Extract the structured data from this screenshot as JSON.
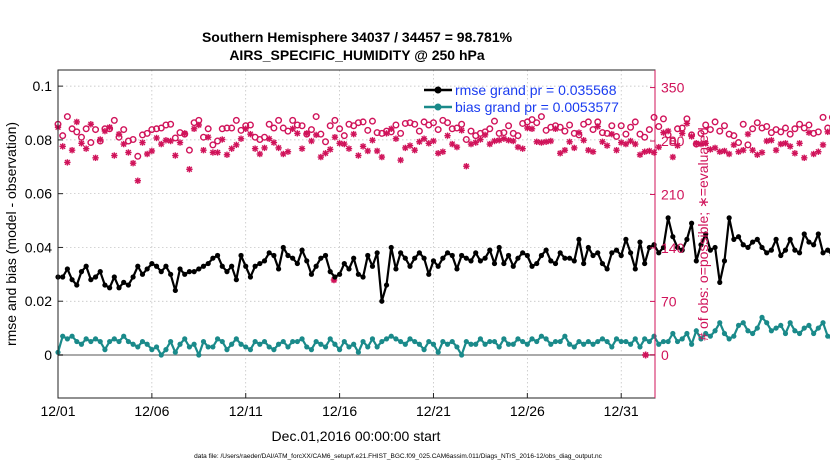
{
  "chart_data": {
    "type": "line",
    "title": "Southern Hemisphere 34037 / 34457 = 98.781%",
    "subtitle": "AIRS_SPECIFIC_HUMIDITY @ 250 hPa",
    "xlabel": "Dec.01,2016 00:00:00 start",
    "ylabel_left": "rmse and bias (model - observation)",
    "ylabel_right": "# of obs: o=possible; ∗=evaluated",
    "footnote": "data file: /Users/raeder/DAI/ATM_forcXX/CAM6_setup/f.e21.FHIST_BGC.f09_025.CAM6assim.011/Diags_NTrS_2016-12/obs_diag_output.nc",
    "xlim": [
      0,
      31.8
    ],
    "ylim_left": [
      -0.016,
      0.106
    ],
    "ylim_right": [
      -56.5,
      373
    ],
    "x_ticks": [
      0,
      5,
      10,
      15,
      20,
      25,
      30
    ],
    "x_tick_labels": [
      "12/01",
      "12/06",
      "12/11",
      "12/16",
      "12/21",
      "12/26",
      "12/31"
    ],
    "y_left_ticks": [
      0,
      0.02,
      0.04,
      0.06,
      0.08,
      0.1
    ],
    "y_left_tick_labels": [
      "0",
      "0.02",
      "0.04",
      "0.06",
      "0.08",
      "0.1"
    ],
    "y_right_ticks": [
      0,
      70,
      140,
      210,
      280,
      350
    ],
    "y_right_tick_labels": [
      "0",
      "70",
      "140",
      "210",
      "280",
      "350"
    ],
    "legend_location": "top-right",
    "colors": {
      "rmse": "#000000",
      "bias": "#1a8a8a",
      "obs": "#d0135a",
      "axis_right": "#d0135a",
      "legend_text": "#1a3cf0"
    },
    "series": [
      {
        "name": "rmse grand pr = 0.035568",
        "axis": "left",
        "values": [
          0.029,
          0.029,
          0.032,
          0.028,
          0.026,
          0.031,
          0.033,
          0.028,
          0.029,
          0.031,
          0.026,
          0.025,
          0.029,
          0.025,
          0.027,
          0.026,
          0.029,
          0.033,
          0.03,
          0.032,
          0.034,
          0.033,
          0.031,
          0.033,
          0.03,
          0.024,
          0.032,
          0.03,
          0.031,
          0.031,
          0.032,
          0.033,
          0.034,
          0.036,
          0.037,
          0.033,
          0.031,
          0.033,
          0.028,
          0.037,
          0.033,
          0.029,
          0.033,
          0.034,
          0.035,
          0.038,
          0.037,
          0.032,
          0.04,
          0.037,
          0.036,
          0.034,
          0.039,
          0.035,
          0.03,
          0.033,
          0.036,
          0.037,
          0.031,
          0.029,
          0.03,
          0.034,
          0.032,
          0.036,
          0.03,
          0.029,
          0.037,
          0.033,
          0.038,
          0.02,
          0.026,
          0.04,
          0.032,
          0.038,
          0.036,
          0.033,
          0.036,
          0.038,
          0.036,
          0.03,
          0.035,
          0.033,
          0.036,
          0.038,
          0.037,
          0.032,
          0.037,
          0.036,
          0.035,
          0.038,
          0.035,
          0.036,
          0.039,
          0.034,
          0.04,
          0.034,
          0.037,
          0.033,
          0.036,
          0.038,
          0.037,
          0.033,
          0.034,
          0.037,
          0.039,
          0.035,
          0.034,
          0.038,
          0.036,
          0.036,
          0.035,
          0.043,
          0.034,
          0.04,
          0.037,
          0.038,
          0.034,
          0.032,
          0.038,
          0.039,
          0.037,
          0.043,
          0.038,
          0.032,
          0.042,
          0.034,
          0.04,
          0.041,
          0.038,
          0.04,
          0.051,
          0.044,
          0.04,
          0.039,
          0.043,
          0.049,
          0.035,
          0.041,
          0.045,
          0.039,
          0.04,
          0.027,
          0.035,
          0.051,
          0.043,
          0.044,
          0.041,
          0.04,
          0.042,
          0.043,
          0.04,
          0.038,
          0.039,
          0.043,
          0.037,
          0.039,
          0.043,
          0.039,
          0.038,
          0.045,
          0.042,
          0.041,
          0.045,
          0.038,
          0.039,
          0.037,
          0.041,
          0.04,
          0.038,
          0.042,
          0.043,
          0.042
        ]
      },
      {
        "name": "bias grand pr = 0.0053577",
        "axis": "left",
        "values": [
          0.001,
          0.007,
          0.006,
          0.007,
          0.005,
          0.004,
          0.006,
          0.005,
          0.006,
          0.005,
          0.002,
          0.005,
          0.006,
          0.005,
          0.007,
          0.005,
          0.004,
          0.003,
          0.005,
          0.004,
          0.002,
          0.003,
          0.0,
          0.002,
          0.005,
          0.001,
          0.004,
          0.006,
          0.003,
          0.004,
          0.0,
          0.005,
          0.003,
          0.003,
          0.006,
          0.005,
          0.002,
          0.004,
          0.006,
          0.004,
          0.003,
          0.002,
          0.005,
          0.004,
          0.005,
          0.003,
          0.002,
          0.004,
          0.005,
          0.003,
          0.005,
          0.005,
          0.006,
          0.003,
          0.002,
          0.005,
          0.004,
          0.003,
          0.006,
          0.004,
          0.002,
          0.005,
          0.003,
          0.004,
          0.001,
          0.005,
          0.003,
          0.006,
          0.003,
          0.005,
          0.006,
          0.007,
          0.006,
          0.005,
          0.004,
          0.006,
          0.005,
          0.004,
          0.002,
          0.005,
          0.004,
          0.001,
          0.005,
          0.004,
          0.005,
          0.003,
          0.0,
          0.005,
          0.004,
          0.004,
          0.006,
          0.004,
          0.005,
          0.005,
          0.003,
          0.006,
          0.004,
          0.004,
          0.006,
          0.005,
          0.004,
          0.006,
          0.005,
          0.007,
          0.006,
          0.004,
          0.005,
          0.005,
          0.007,
          0.004,
          0.003,
          0.005,
          0.004,
          0.005,
          0.004,
          0.005,
          0.006,
          0.005,
          0.003,
          0.006,
          0.005,
          0.005,
          0.004,
          0.006,
          0.003,
          0.006,
          0.005,
          0.007,
          0.004,
          0.005,
          0.005,
          0.008,
          0.005,
          0.006,
          0.008,
          0.004,
          0.009,
          0.006,
          0.008,
          0.007,
          0.009,
          0.012,
          0.008,
          0.006,
          0.007,
          0.011,
          0.012,
          0.009,
          0.008,
          0.01,
          0.014,
          0.012,
          0.009,
          0.01,
          0.011,
          0.008,
          0.012,
          0.009,
          0.008,
          0.01,
          0.011,
          0.008,
          0.01,
          0.012,
          0.007,
          0.006,
          0.008,
          0.009,
          0.007,
          0.008,
          0.01,
          0.008,
          0.009,
          0.007,
          0.008,
          0.009
        ]
      },
      {
        "name": "possible",
        "axis": "right",
        "values": [
          302,
          287,
          312,
          296,
          292,
          285,
          296,
          278,
          295,
          280,
          296,
          296,
          307,
          285,
          295,
          280,
          282,
          260,
          288,
          290,
          295,
          296,
          297,
          301,
          302,
          284,
          291,
          289,
          268,
          304,
          307,
          285,
          296,
          275,
          280,
          296,
          297,
          297,
          307,
          294,
          300,
          301,
          285,
          282,
          285,
          302,
          297,
          307,
          297,
          293,
          307,
          301,
          300,
          289,
          295,
          312,
          289,
          279,
          300,
          307,
          296,
          287,
          302,
          300,
          304,
          305,
          294,
          306,
          291,
          290,
          293,
          292,
          301,
          290,
          303,
          304,
          302,
          293,
          305,
          301,
          304,
          295,
          307,
          304,
          296,
          297,
          302,
          282,
          293,
          287,
          290,
          292,
          296,
          306,
          290,
          291,
          300,
          290,
          287,
          303,
          305,
          308,
          304,
          312,
          294,
          298,
          300,
          298,
          293,
          301,
          290,
          288,
          302,
          305,
          295,
          305,
          291,
          290,
          300,
          286,
          300,
          289,
          298,
          305,
          289,
          285,
          295,
          311,
          299,
          309,
          288,
          280,
          296,
          297,
          309,
          288,
          276,
          290,
          301,
          295,
          305,
          293,
          300,
          289,
          287,
          278,
          302,
          275,
          296,
          304,
          297,
          299,
          291,
          295,
          292,
          297,
          289,
          296,
          302,
          297,
          301,
          290,
          292,
          311,
          297,
          311,
          307,
          299,
          277,
          288,
          304,
          303,
          305,
          295,
          289,
          300,
          309,
          302,
          293,
          297,
          300,
          319
        ]
      },
      {
        "name": "evaluated",
        "axis": "right",
        "values": [
          298,
          273,
          252,
          268,
          305,
          277,
          270,
          302,
          258,
          282,
          293,
          298,
          261,
          289,
          276,
          265,
          251,
          228,
          278,
          263,
          267,
          284,
          276,
          281,
          280,
          261,
          278,
          290,
          243,
          296,
          301,
          268,
          285,
          265,
          265,
          282,
          262,
          270,
          275,
          283,
          296,
          289,
          270,
          263,
          271,
          283,
          278,
          271,
          263,
          266,
          296,
          290,
          270,
          290,
          280,
          288,
          259,
          264,
          269,
          285,
          277,
          276,
          270,
          289,
          261,
          273,
          267,
          281,
          267,
          259,
          290,
          296,
          283,
          255,
          271,
          274,
          268,
          279,
          283,
          277,
          280,
          264,
          266,
          287,
          276,
          272,
          294,
          247,
          276,
          278,
          282,
          288,
          276,
          280,
          281,
          283,
          281,
          280,
          272,
          270,
          297,
          296,
          279,
          278,
          279,
          280,
          296,
          264,
          268,
          279,
          271,
          291,
          281,
          268,
          266,
          299,
          279,
          274,
          289,
          268,
          278,
          276,
          280,
          276,
          262,
          266,
          267,
          265,
          272,
          291,
          293,
          259,
          274,
          290,
          303,
          286,
          277,
          276,
          277,
          269,
          271,
          266,
          267,
          263,
          275,
          266,
          268,
          289,
          268,
          262,
          265,
          280,
          281,
          268,
          276,
          277,
          273,
          264,
          277,
          258,
          291,
          263,
          266,
          275,
          292,
          297,
          291,
          291,
          265,
          297,
          275,
          274,
          293,
          306,
          272,
          274,
          274,
          272,
          279,
          272,
          284,
          289,
          272,
          299,
          316
        ]
      }
    ],
    "rmse_outlier_marker": {
      "series": "evaluated",
      "x": 14.7,
      "value": 98
    },
    "end_marker_x": 31.3
  }
}
